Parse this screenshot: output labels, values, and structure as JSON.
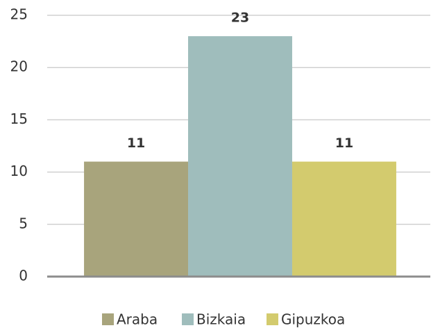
{
  "chart_data": {
    "type": "bar",
    "categories": [
      null
    ],
    "series": [
      {
        "name": "Araba",
        "color": "#a8a47c",
        "values": [
          11
        ]
      },
      {
        "name": "Bizkaia",
        "color": "#9fbdbc",
        "values": [
          23
        ]
      },
      {
        "name": "Gipuzkoa",
        "color": "#d3cb6e",
        "values": [
          11
        ]
      }
    ],
    "ylim": [
      0,
      25
    ],
    "yticks": [
      0,
      5,
      10,
      15,
      20,
      25
    ],
    "grid": true,
    "legend": "bottom"
  }
}
